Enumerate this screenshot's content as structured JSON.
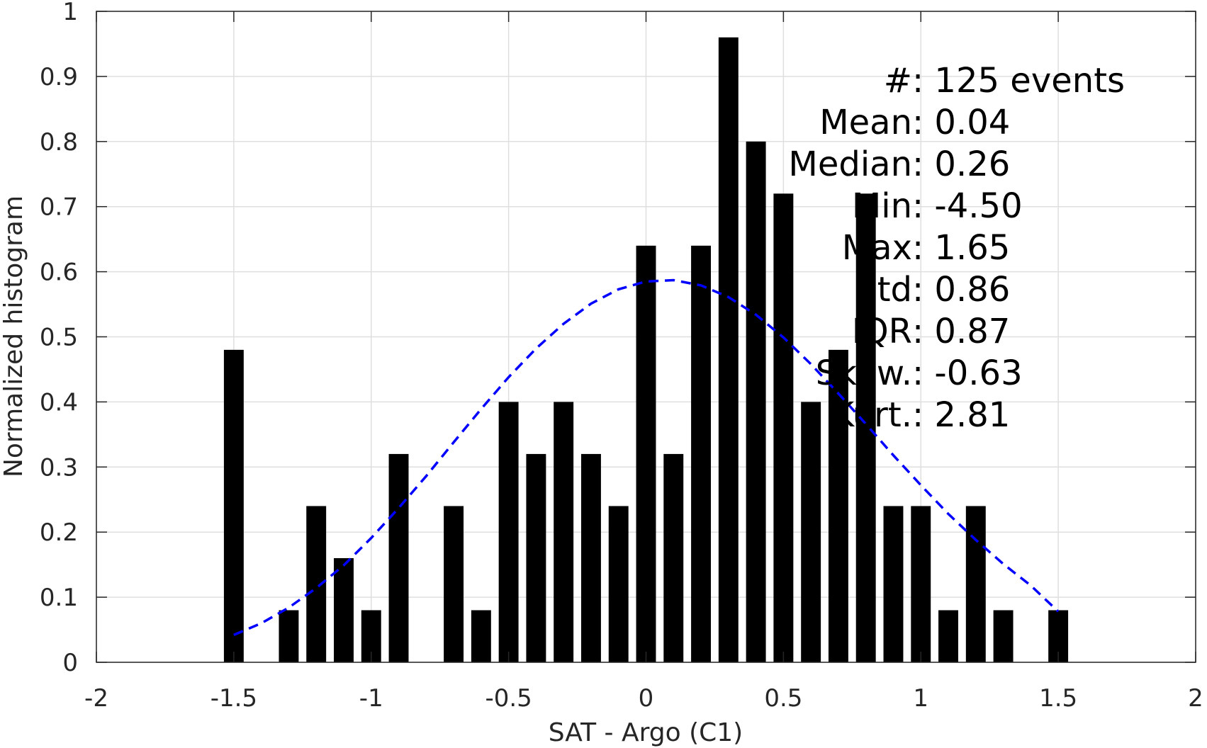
{
  "chart_data": {
    "type": "bar",
    "title": "",
    "xlabel": "SAT - Argo (C1)",
    "ylabel": "Normalized histogram",
    "xlim": [
      -2,
      2
    ],
    "ylim": [
      0,
      1
    ],
    "xticks": [
      -2,
      -1.5,
      -1,
      -0.5,
      0,
      0.5,
      1,
      1.5,
      2
    ],
    "xtick_labels": [
      "-2",
      "-1.5",
      "-1",
      "-0.5",
      "0",
      "0.5",
      "1",
      "1.5",
      "2"
    ],
    "yticks": [
      0,
      0.1,
      0.2,
      0.3,
      0.4,
      0.5,
      0.6,
      0.7,
      0.8,
      0.9,
      1
    ],
    "ytick_labels": [
      "0",
      "0.1",
      "0.2",
      "0.3",
      "0.4",
      "0.5",
      "0.6",
      "0.7",
      "0.8",
      "0.9",
      "1"
    ],
    "grid": true,
    "bar_color": "#000000",
    "bars": {
      "x": [
        -1.5,
        -1.3,
        -1.2,
        -1.1,
        -1.0,
        -0.9,
        -0.7,
        -0.6,
        -0.5,
        -0.4,
        -0.3,
        -0.2,
        -0.1,
        0.0,
        0.1,
        0.2,
        0.3,
        0.4,
        0.5,
        0.6,
        0.7,
        0.8,
        0.9,
        1.0,
        1.1,
        1.2,
        1.3,
        1.5
      ],
      "values": [
        0.48,
        0.08,
        0.24,
        0.16,
        0.08,
        0.32,
        0.24,
        0.08,
        0.4,
        0.32,
        0.4,
        0.32,
        0.24,
        0.64,
        0.32,
        0.64,
        0.96,
        0.8,
        0.72,
        0.4,
        0.48,
        0.72,
        0.24,
        0.24,
        0.08,
        0.24,
        0.08,
        0.08
      ]
    },
    "fit_curve": {
      "style": "dashed",
      "color": "#0000ff",
      "x": [
        -1.5,
        -1.4,
        -1.3,
        -1.2,
        -1.1,
        -1.0,
        -0.9,
        -0.8,
        -0.7,
        -0.6,
        -0.5,
        -0.4,
        -0.3,
        -0.2,
        -0.1,
        0.0,
        0.1,
        0.2,
        0.3,
        0.4,
        0.5,
        0.6,
        0.7,
        0.8,
        0.9,
        1.0,
        1.1,
        1.2,
        1.3,
        1.4,
        1.5
      ],
      "y": [
        0.042,
        0.06,
        0.084,
        0.114,
        0.149,
        0.191,
        0.237,
        0.286,
        0.338,
        0.389,
        0.438,
        0.482,
        0.52,
        0.551,
        0.573,
        0.585,
        0.587,
        0.579,
        0.561,
        0.534,
        0.499,
        0.458,
        0.413,
        0.366,
        0.318,
        0.272,
        0.228,
        0.188,
        0.151,
        0.118,
        0.078
      ]
    },
    "stats": [
      {
        "label": "#  ",
        "value": ": 125 events"
      },
      {
        "label": "Mean ",
        "value": ": 0.04"
      },
      {
        "label": "Median ",
        "value": ": 0.26"
      },
      {
        "label": "Min ",
        "value": ": -4.50"
      },
      {
        "label": "Max ",
        "value": ": 1.65"
      },
      {
        "label": "Std ",
        "value": ": 0.86"
      },
      {
        "label": "IQR ",
        "value": ": 0.87"
      },
      {
        "label": "Skew. ",
        "value": ": -0.63"
      },
      {
        "label": "Kurt. ",
        "value": ": 2.81"
      }
    ]
  }
}
